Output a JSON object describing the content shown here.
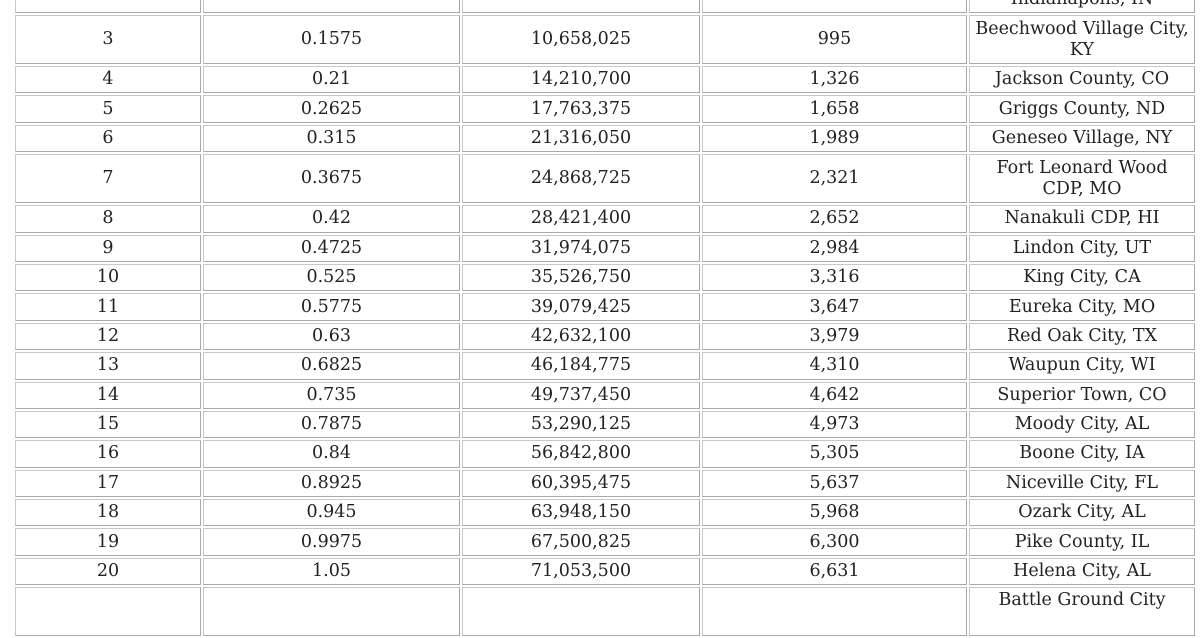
{
  "table": {
    "rows": [
      {
        "n": "",
        "a": "",
        "b": "",
        "c": "",
        "place": "Indianapolis, IN",
        "tall": true
      },
      {
        "n": "3",
        "a": "0.1575",
        "b": "10,658,025",
        "c": "995",
        "place": "Beechwood Village City, KY",
        "tall": true
      },
      {
        "n": "4",
        "a": "0.21",
        "b": "14,210,700",
        "c": "1,326",
        "place": "Jackson County, CO"
      },
      {
        "n": "5",
        "a": "0.2625",
        "b": "17,763,375",
        "c": "1,658",
        "place": "Griggs County, ND"
      },
      {
        "n": "6",
        "a": "0.315",
        "b": "21,316,050",
        "c": "1,989",
        "place": "Geneseo Village, NY"
      },
      {
        "n": "7",
        "a": "0.3675",
        "b": "24,868,725",
        "c": "2,321",
        "place": "Fort Leonard Wood CDP, MO",
        "tall": true
      },
      {
        "n": "8",
        "a": "0.42",
        "b": "28,421,400",
        "c": "2,652",
        "place": "Nanakuli CDP, HI"
      },
      {
        "n": "9",
        "a": "0.4725",
        "b": "31,974,075",
        "c": "2,984",
        "place": "Lindon City, UT"
      },
      {
        "n": "10",
        "a": "0.525",
        "b": "35,526,750",
        "c": "3,316",
        "place": "King City, CA"
      },
      {
        "n": "11",
        "a": "0.5775",
        "b": "39,079,425",
        "c": "3,647",
        "place": "Eureka City, MO"
      },
      {
        "n": "12",
        "a": "0.63",
        "b": "42,632,100",
        "c": "3,979",
        "place": "Red Oak City, TX"
      },
      {
        "n": "13",
        "a": "0.6825",
        "b": "46,184,775",
        "c": "4,310",
        "place": "Waupun City, WI"
      },
      {
        "n": "14",
        "a": "0.735",
        "b": "49,737,450",
        "c": "4,642",
        "place": "Superior Town, CO"
      },
      {
        "n": "15",
        "a": "0.7875",
        "b": "53,290,125",
        "c": "4,973",
        "place": "Moody City, AL"
      },
      {
        "n": "16",
        "a": "0.84",
        "b": "56,842,800",
        "c": "5,305",
        "place": "Boone City, IA"
      },
      {
        "n": "17",
        "a": "0.8925",
        "b": "60,395,475",
        "c": "5,637",
        "place": "Niceville City, FL"
      },
      {
        "n": "18",
        "a": "0.945",
        "b": "63,948,150",
        "c": "5,968",
        "place": "Ozark City, AL"
      },
      {
        "n": "19",
        "a": "0.9975",
        "b": "67,500,825",
        "c": "6,300",
        "place": "Pike County, IL"
      },
      {
        "n": "20",
        "a": "1.05",
        "b": "71,053,500",
        "c": "6,631",
        "place": "Helena City, AL"
      },
      {
        "n": "",
        "a": "",
        "b": "",
        "c": "",
        "place": "Battle Ground City",
        "tall": true
      }
    ]
  }
}
